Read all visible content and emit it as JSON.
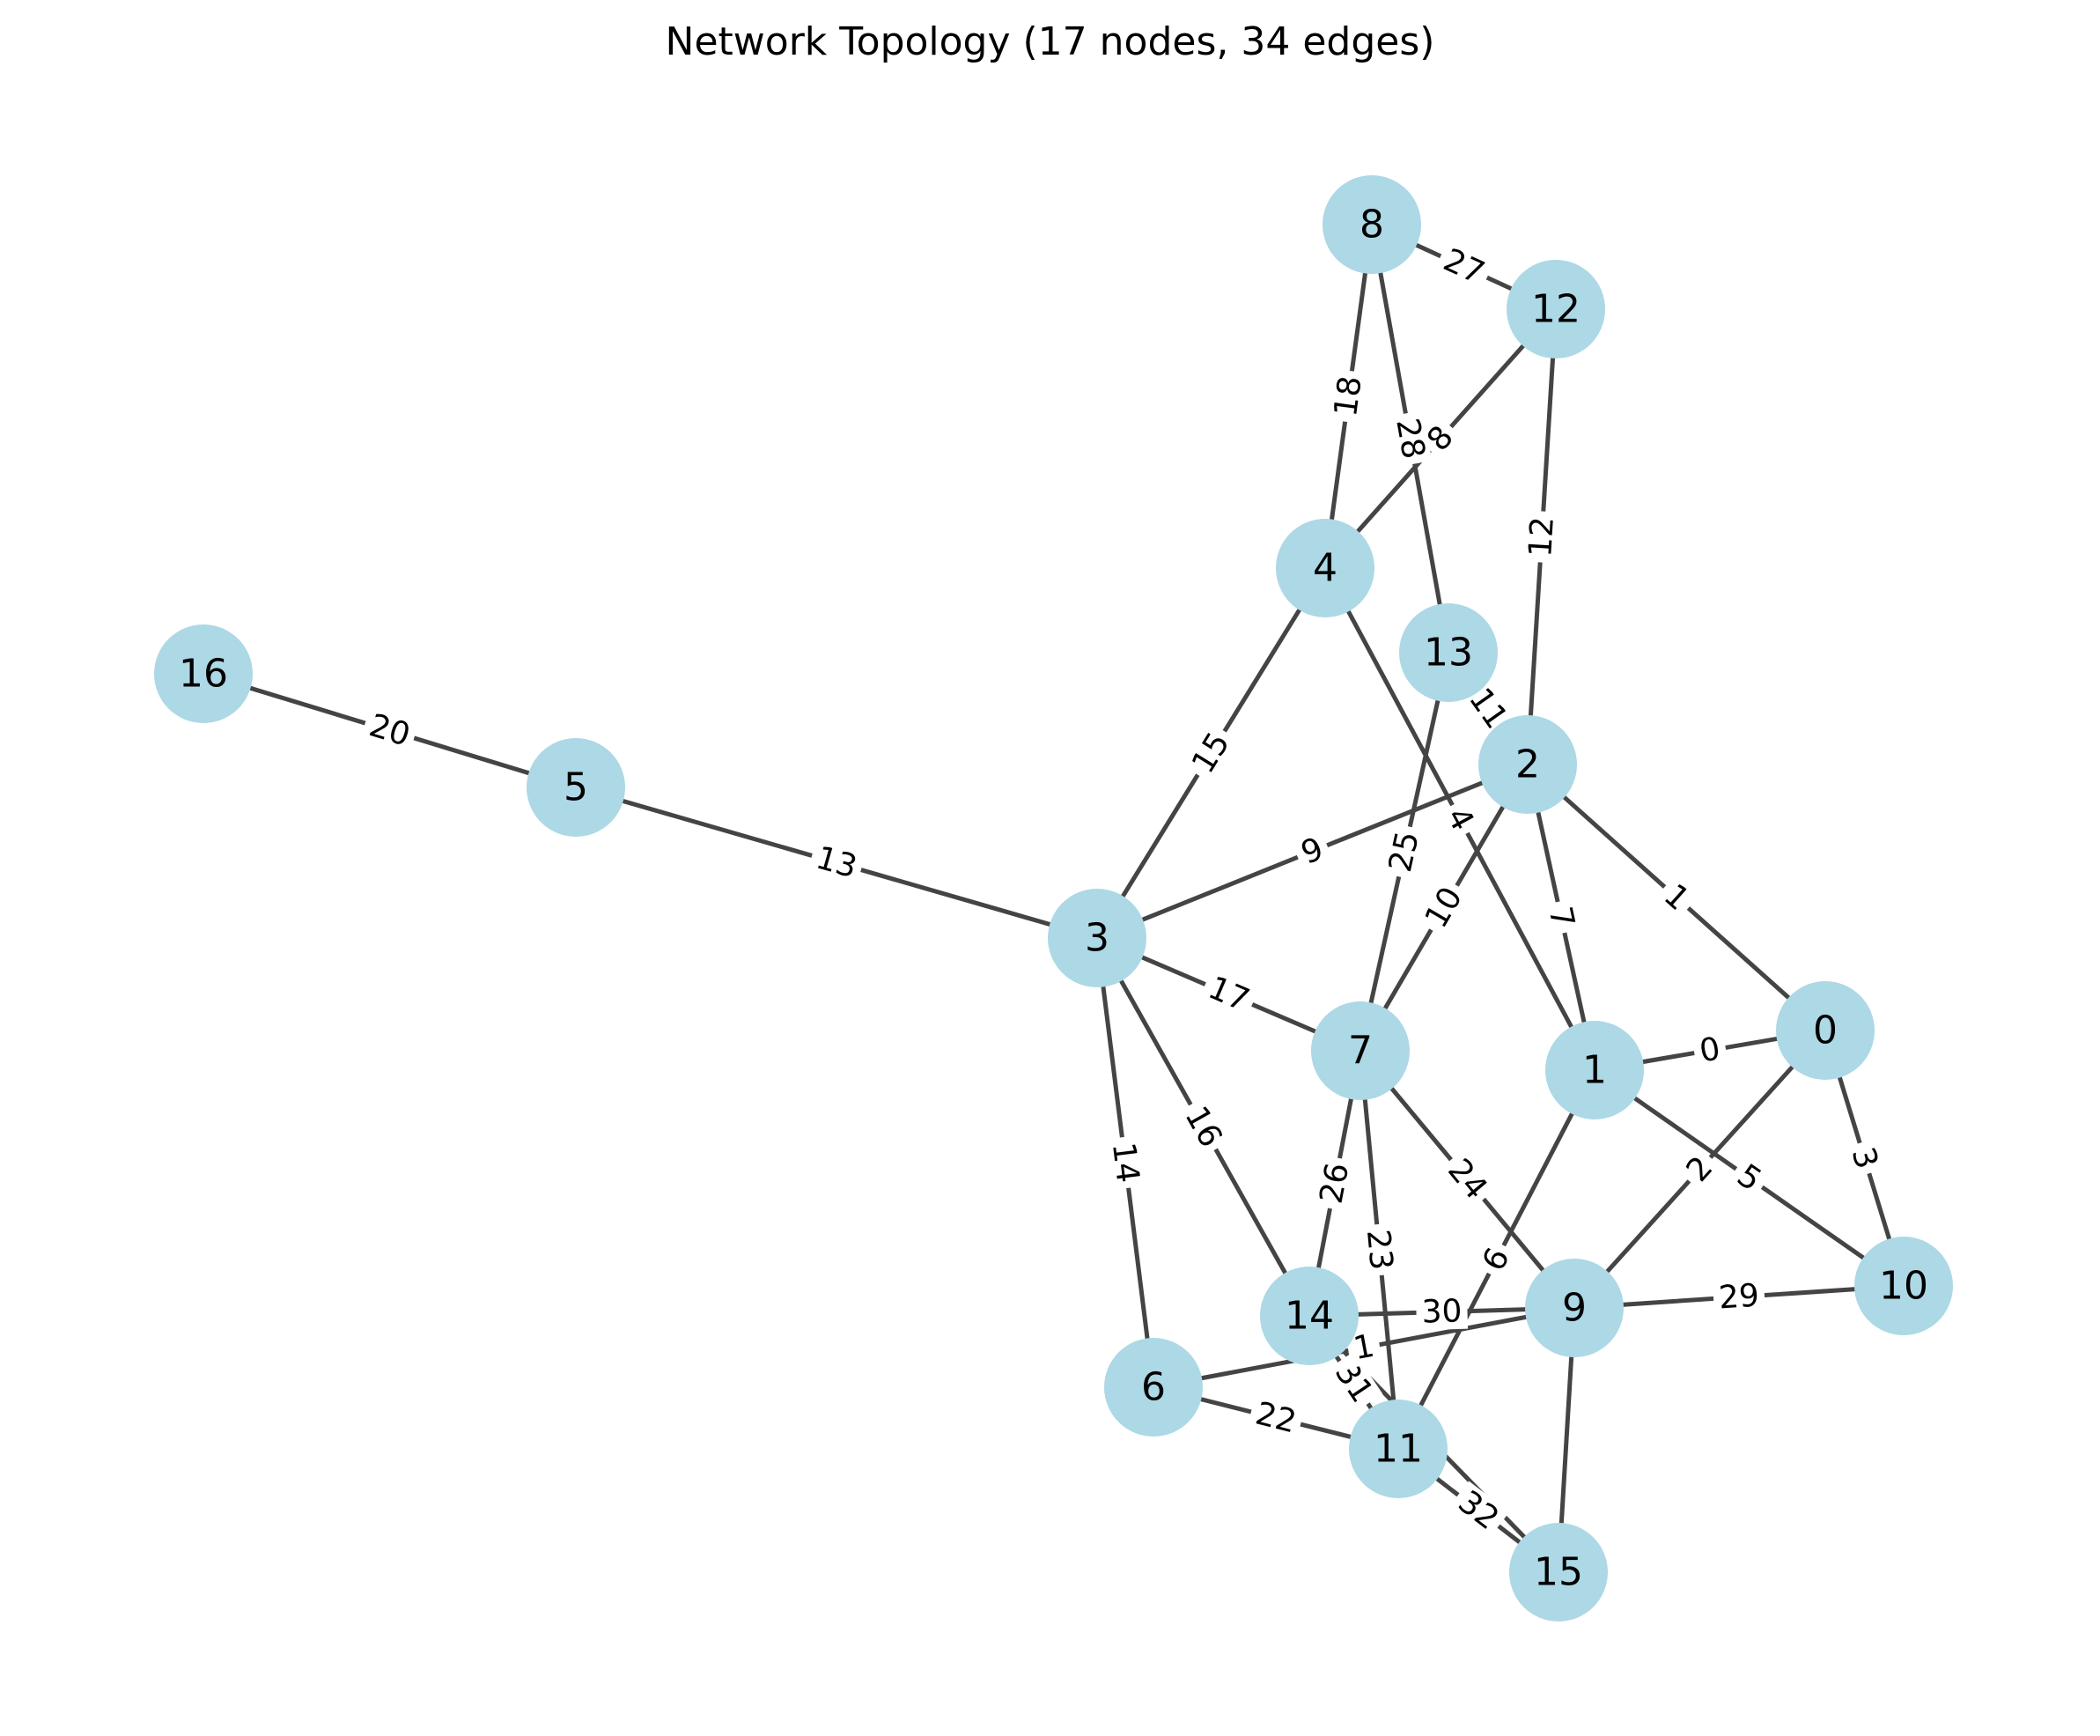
{
  "title": "Network Topology (17 nodes, 34 edges)",
  "colors": {
    "node": "#add8e6",
    "edge": "#444444",
    "text": "#000000"
  },
  "nodes": [
    "0",
    "1",
    "2",
    "3",
    "4",
    "5",
    "6",
    "7",
    "8",
    "9",
    "10",
    "11",
    "12",
    "13",
    "14",
    "15",
    "16"
  ],
  "edges": [
    {
      "source": "1",
      "target": "0",
      "label": "0"
    },
    {
      "source": "2",
      "target": "0",
      "label": "1"
    },
    {
      "source": "9",
      "target": "0",
      "label": "2"
    },
    {
      "source": "0",
      "target": "10",
      "label": "3"
    },
    {
      "source": "4",
      "target": "1",
      "label": "4"
    },
    {
      "source": "1",
      "target": "10",
      "label": "5"
    },
    {
      "source": "1",
      "target": "11",
      "label": "6"
    },
    {
      "source": "2",
      "target": "1",
      "label": "7"
    },
    {
      "source": "12",
      "target": "4",
      "label": "8"
    },
    {
      "source": "3",
      "target": "2",
      "label": "9"
    },
    {
      "source": "7",
      "target": "2",
      "label": "10"
    },
    {
      "source": "13",
      "target": "2",
      "label": "11"
    },
    {
      "source": "12",
      "target": "2",
      "label": "12"
    },
    {
      "source": "5",
      "target": "3",
      "label": "13"
    },
    {
      "source": "3",
      "target": "6",
      "label": "14"
    },
    {
      "source": "4",
      "target": "3",
      "label": "15"
    },
    {
      "source": "3",
      "target": "14",
      "label": "16"
    },
    {
      "source": "3",
      "target": "7",
      "label": "17"
    },
    {
      "source": "8",
      "target": "4",
      "label": "18"
    },
    {
      "source": "16",
      "target": "5",
      "label": "20"
    },
    {
      "source": "6",
      "target": "11",
      "label": "22"
    },
    {
      "source": "7",
      "target": "11",
      "label": "23"
    },
    {
      "source": "7",
      "target": "9",
      "label": "24"
    },
    {
      "source": "13",
      "target": "7",
      "label": "25"
    },
    {
      "source": "7",
      "target": "14",
      "label": "26"
    },
    {
      "source": "8",
      "target": "12",
      "label": "27"
    },
    {
      "source": "8",
      "target": "13",
      "label": "28"
    },
    {
      "source": "9",
      "target": "10",
      "label": "29"
    },
    {
      "source": "14",
      "target": "9",
      "label": "30"
    },
    {
      "source": "14",
      "target": "11",
      "label": "31"
    },
    {
      "source": "11",
      "target": "15",
      "label": "32"
    },
    {
      "source": "6",
      "target": "9",
      "label": "1"
    },
    {
      "source": "9",
      "target": "15",
      "label": ""
    },
    {
      "source": "14",
      "target": "15",
      "label": ""
    }
  ]
}
